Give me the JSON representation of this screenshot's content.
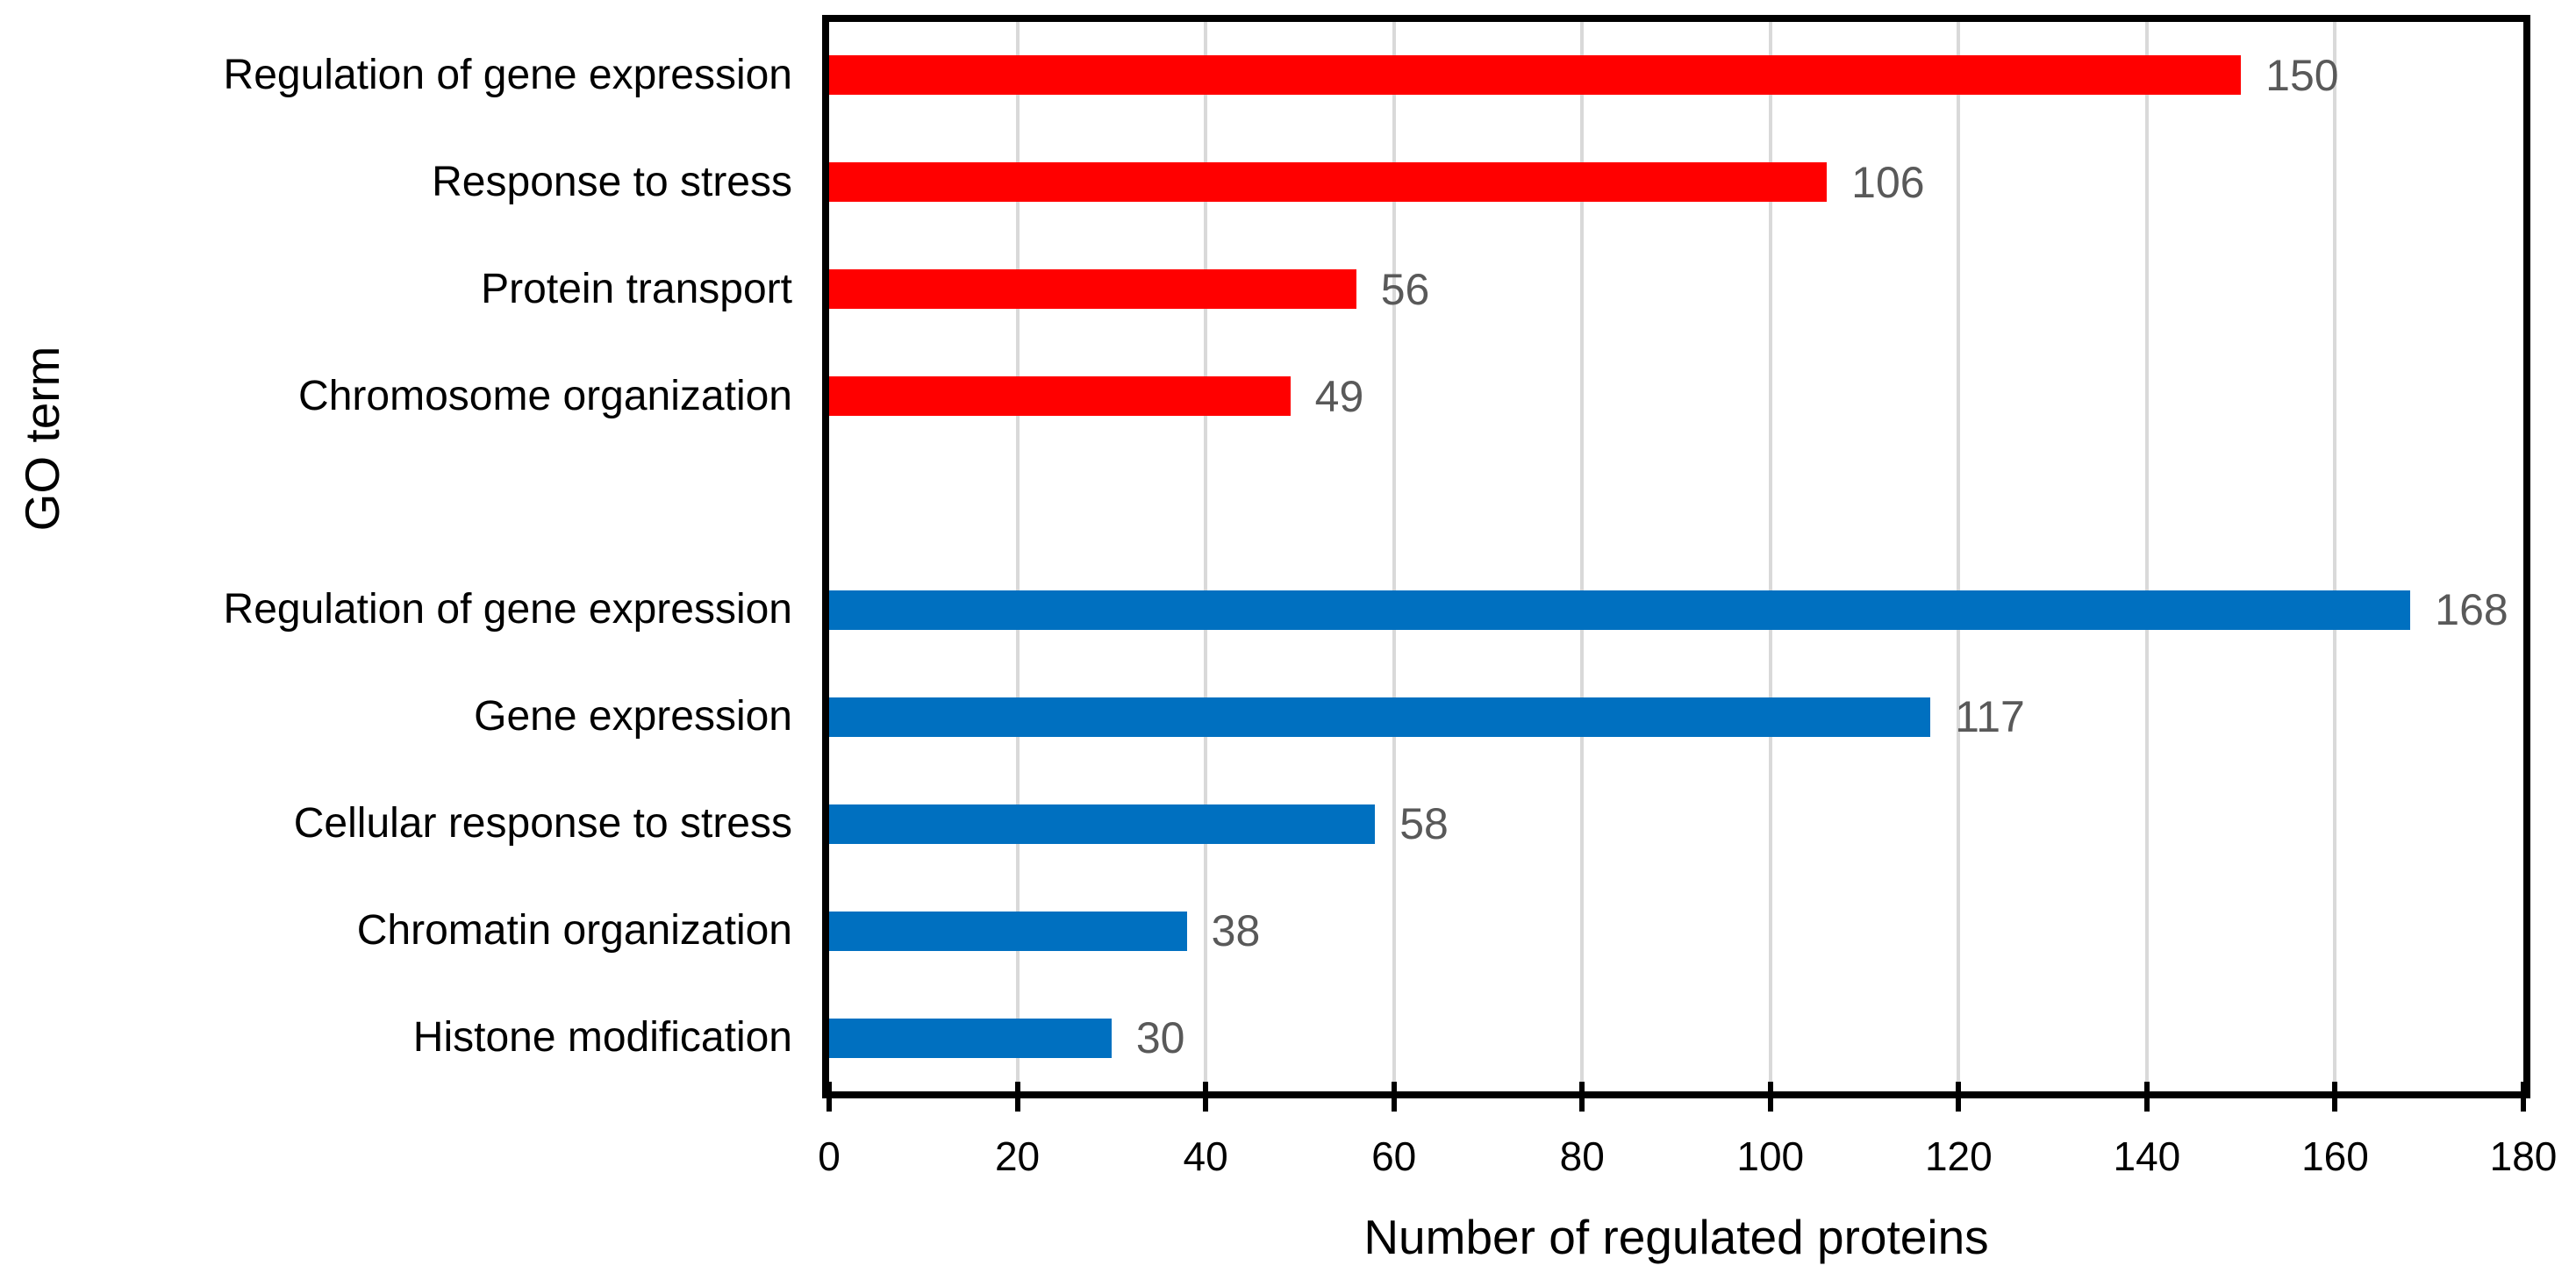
{
  "chart_data": {
    "type": "bar",
    "orientation": "horizontal",
    "title": "",
    "xlabel": "Number of regulated proteins",
    "ylabel": "GO term",
    "xlim": [
      0,
      180
    ],
    "xticks": [
      0,
      20,
      40,
      60,
      80,
      100,
      120,
      140,
      160,
      180
    ],
    "grid": "vertical gridlines at every x tick, behind bars",
    "legend": "none",
    "value_labels": "shown at end of each bar",
    "gap_between_groups": "one empty category slot between the two series",
    "series": [
      {
        "name": "red-series",
        "color": "#FF0000",
        "items": [
          {
            "category": "Regulation of gene expression",
            "value": 150
          },
          {
            "category": "Response to stress",
            "value": 106
          },
          {
            "category": "Protein transport",
            "value": 56
          },
          {
            "category": "Chromosome organization",
            "value": 49
          }
        ]
      },
      {
        "name": "blue-series",
        "color": "#0070C0",
        "items": [
          {
            "category": "Regulation of gene expression",
            "value": 168
          },
          {
            "category": "Gene expression",
            "value": 117
          },
          {
            "category": "Cellular response to stress",
            "value": 58
          },
          {
            "category": "Chromatin organization",
            "value": 38
          },
          {
            "category": "Histone modification",
            "value": 30
          }
        ]
      }
    ],
    "colors": {
      "bar_red": "#FF0000",
      "bar_blue": "#0070C0",
      "gridline": "#D9D9D9",
      "axis_frame": "#000000",
      "tick_mark": "#000000",
      "tick_label": "#000000",
      "category_label": "#000000",
      "value_label": "#595959",
      "background": "#FFFFFF"
    }
  }
}
